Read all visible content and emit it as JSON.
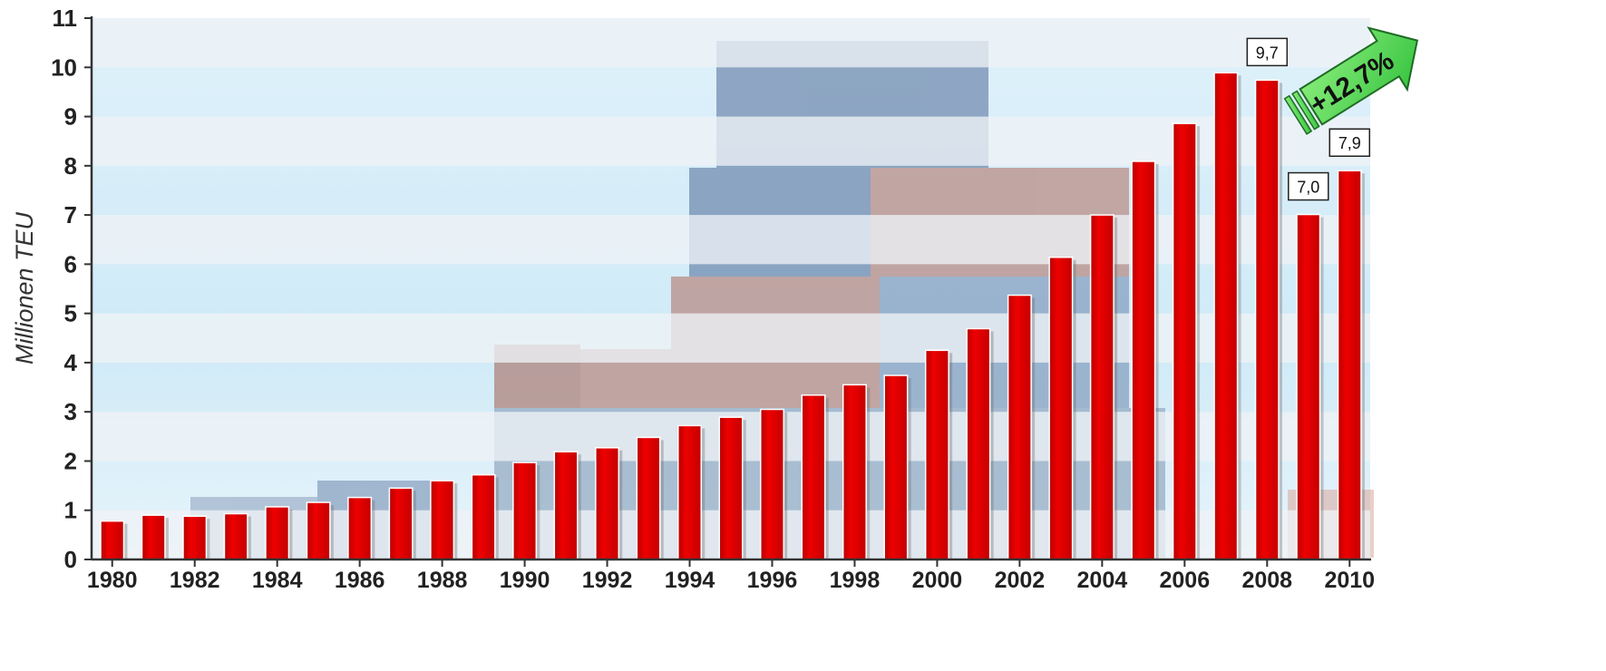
{
  "chart_data": {
    "type": "bar",
    "title": "",
    "xlabel": "",
    "ylabel": "Millionen TEU",
    "ylim": [
      0,
      11
    ],
    "y_ticks": [
      "0",
      "1",
      "2",
      "3",
      "4",
      "5",
      "6",
      "7",
      "8",
      "9",
      "10",
      "11"
    ],
    "x_tick_labels": [
      "1980",
      "1982",
      "1984",
      "1986",
      "1988",
      "1990",
      "1992",
      "1994",
      "1996",
      "1998",
      "2000",
      "2002",
      "2004",
      "2006",
      "2008",
      "2010"
    ],
    "grid": "horizontal bands",
    "categories": [
      "1980",
      "1981",
      "1982",
      "1983",
      "1984",
      "1985",
      "1986",
      "1987",
      "1988",
      "1989",
      "1990",
      "1991",
      "1992",
      "1993",
      "1994",
      "1995",
      "1996",
      "1997",
      "1998",
      "1999",
      "2000",
      "2001",
      "2002",
      "2003",
      "2004",
      "2005",
      "2006",
      "2007",
      "2008",
      "2009",
      "2010"
    ],
    "values": [
      0.78,
      0.9,
      0.88,
      0.93,
      1.07,
      1.16,
      1.26,
      1.45,
      1.6,
      1.72,
      1.97,
      2.19,
      2.27,
      2.48,
      2.72,
      2.89,
      3.05,
      3.34,
      3.55,
      3.74,
      4.25,
      4.69,
      5.37,
      6.14,
      7.0,
      8.09,
      8.86,
      9.89,
      9.74,
      7.01,
      7.9
    ],
    "bar_color": "#e00000",
    "data_labels": [
      {
        "category": "2008",
        "text": "9,7"
      },
      {
        "category": "2009",
        "text": "7,0"
      },
      {
        "category": "2010",
        "text": "7,9"
      }
    ],
    "growth_badge": {
      "text": "+12,7%",
      "color": "#44d84a"
    }
  }
}
